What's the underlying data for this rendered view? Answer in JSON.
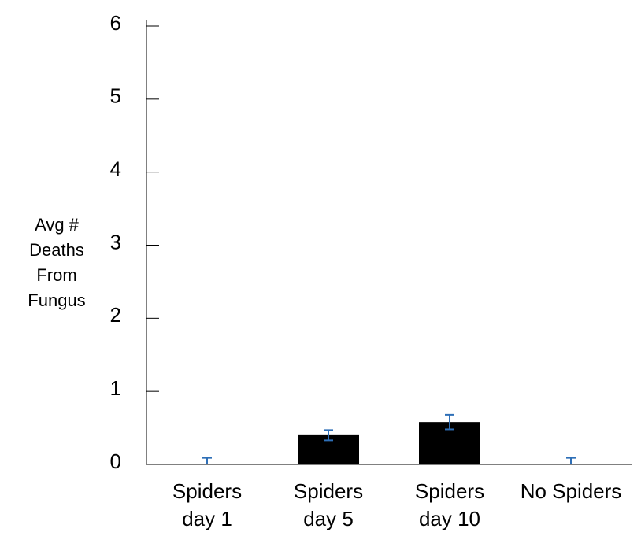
{
  "chart_data": {
    "type": "bar",
    "categories": [
      [
        "Spiders",
        "day 1"
      ],
      [
        "Spiders",
        "day 5"
      ],
      [
        "Spiders",
        "day 10"
      ],
      [
        "No Spiders"
      ]
    ],
    "values": [
      0,
      0.4,
      0.58,
      0
    ],
    "error": [
      0.09,
      0.07,
      0.1,
      0.09
    ],
    "ylabel": [
      "Avg #",
      "Deaths",
      "From",
      "Fungus"
    ],
    "xlabel": "",
    "title": "",
    "ylim": [
      0,
      6
    ],
    "yticks": [
      0,
      1,
      2,
      3,
      4,
      5,
      6
    ],
    "grid": false,
    "legend": "none",
    "colors": {
      "bar": "#000000",
      "error_bar": "#2e6fb7",
      "axis": "#000000"
    }
  }
}
